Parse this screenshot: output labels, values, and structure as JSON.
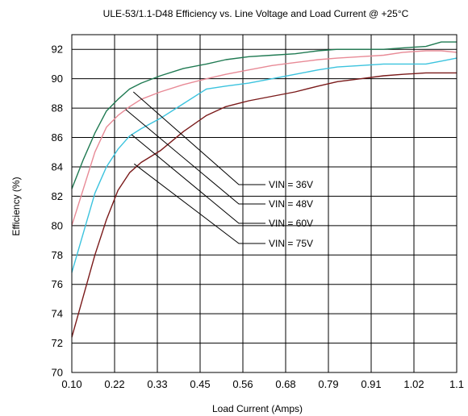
{
  "chart_data": {
    "type": "line",
    "title": "ULE-53/1.1-D48  Efficiency vs. Line Voltage and Load Current @ +25°C",
    "xlabel": "Load Current (Amps)",
    "ylabel": "Efficiency (%)",
    "xlim": [
      0.1,
      1.1
    ],
    "ylim": [
      70,
      93
    ],
    "x_tick_labels": [
      "0.10",
      "0.22",
      "0.33",
      "0.45",
      "0.56",
      "0.68",
      "0.79",
      "0.91",
      "1.02",
      "1.1"
    ],
    "y_tick_labels": [
      "70",
      "72",
      "74",
      "76",
      "78",
      "80",
      "82",
      "84",
      "86",
      "88",
      "90",
      "92"
    ],
    "grid": true,
    "legend_position": "center-right",
    "series": [
      {
        "name": "VIN = 36V",
        "color": "#1f7a52",
        "x": [
          0.1,
          0.13,
          0.16,
          0.19,
          0.22,
          0.25,
          0.28,
          0.33,
          0.39,
          0.45,
          0.5,
          0.56,
          0.62,
          0.68,
          0.74,
          0.79,
          0.85,
          0.91,
          0.96,
          1.02,
          1.06,
          1.1
        ],
        "y": [
          82.5,
          84.5,
          86.3,
          87.8,
          88.6,
          89.3,
          89.7,
          90.2,
          90.7,
          91.0,
          91.3,
          91.5,
          91.6,
          91.7,
          91.9,
          92.0,
          92.0,
          92.0,
          92.1,
          92.2,
          92.5,
          92.5
        ]
      },
      {
        "name": "VIN = 48V",
        "color": "#e88a96",
        "x": [
          0.1,
          0.13,
          0.16,
          0.19,
          0.22,
          0.25,
          0.28,
          0.33,
          0.39,
          0.45,
          0.5,
          0.56,
          0.62,
          0.68,
          0.74,
          0.79,
          0.85,
          0.91,
          0.96,
          1.02,
          1.06,
          1.1
        ],
        "y": [
          80.0,
          82.5,
          85.0,
          86.7,
          87.5,
          88.1,
          88.6,
          89.1,
          89.6,
          90.0,
          90.3,
          90.6,
          90.9,
          91.1,
          91.3,
          91.4,
          91.5,
          91.6,
          91.8,
          91.9,
          91.9,
          91.8
        ]
      },
      {
        "name": "VIN = 60V",
        "color": "#3bc3de",
        "x": [
          0.1,
          0.13,
          0.16,
          0.19,
          0.22,
          0.25,
          0.28,
          0.33,
          0.39,
          0.45,
          0.5,
          0.56,
          0.62,
          0.68,
          0.74,
          0.79,
          0.85,
          0.91,
          0.96,
          1.02,
          1.06,
          1.1
        ],
        "y": [
          76.8,
          79.5,
          82.2,
          84.0,
          85.2,
          86.1,
          86.6,
          87.3,
          88.3,
          89.3,
          89.5,
          89.7,
          90.0,
          90.3,
          90.6,
          90.8,
          90.9,
          91.0,
          91.0,
          91.0,
          91.2,
          91.4
        ]
      },
      {
        "name": "VIN = 75V",
        "color": "#7a1a1a",
        "x": [
          0.1,
          0.13,
          0.16,
          0.19,
          0.22,
          0.25,
          0.28,
          0.33,
          0.39,
          0.45,
          0.5,
          0.56,
          0.62,
          0.68,
          0.74,
          0.79,
          0.85,
          0.91,
          0.96,
          1.02,
          1.06,
          1.1
        ],
        "y": [
          72.4,
          75.2,
          78.0,
          80.4,
          82.4,
          83.6,
          84.3,
          85.1,
          86.4,
          87.5,
          88.1,
          88.5,
          88.8,
          89.1,
          89.5,
          89.8,
          90.0,
          90.2,
          90.3,
          90.4,
          90.4,
          90.4
        ]
      }
    ]
  }
}
